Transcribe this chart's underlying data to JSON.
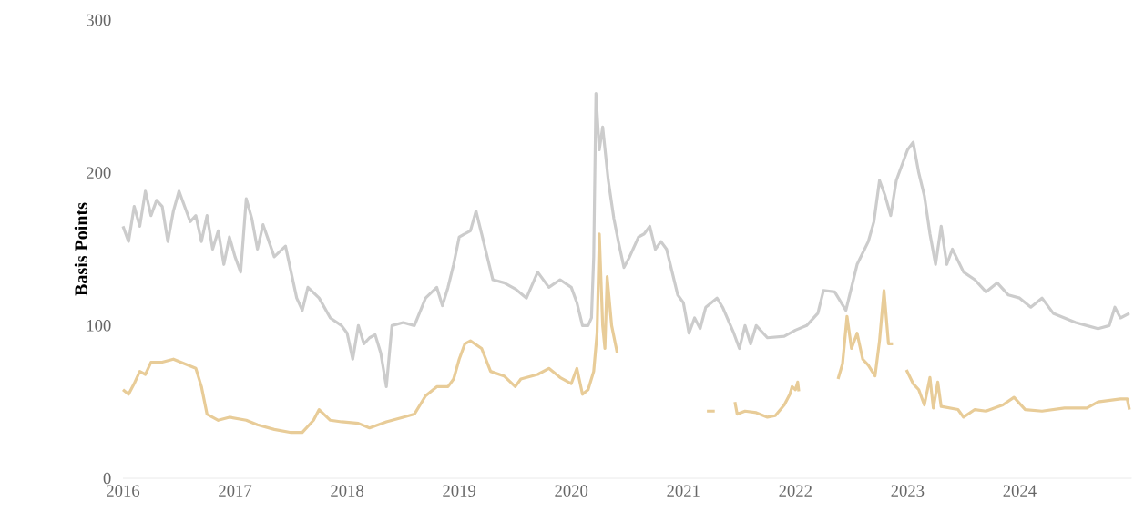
{
  "chart_data": {
    "type": "line",
    "ylabel": "Basis Points",
    "xlim": [
      2016,
      2025
    ],
    "ylim": [
      0,
      300
    ],
    "xticks": [
      2016,
      2017,
      2018,
      2019,
      2020,
      2021,
      2022,
      2023,
      2024
    ],
    "yticks": [
      0,
      100,
      200,
      300
    ],
    "series": [
      {
        "color": "#cccccc",
        "x": [
          2016.0,
          2016.05,
          2016.1,
          2016.15,
          2016.2,
          2016.25,
          2016.3,
          2016.35,
          2016.4,
          2016.45,
          2016.5,
          2016.55,
          2016.6,
          2016.65,
          2016.7,
          2016.75,
          2016.8,
          2016.85,
          2016.9,
          2016.95,
          2017.0,
          2017.05,
          2017.1,
          2017.15,
          2017.2,
          2017.25,
          2017.35,
          2017.45,
          2017.55,
          2017.6,
          2017.65,
          2017.75,
          2017.85,
          2017.95,
          2018.0,
          2018.05,
          2018.1,
          2018.15,
          2018.2,
          2018.25,
          2018.3,
          2018.35,
          2018.4,
          2018.5,
          2018.6,
          2018.7,
          2018.8,
          2018.85,
          2018.9,
          2018.95,
          2019.0,
          2019.1,
          2019.15,
          2019.2,
          2019.25,
          2019.3,
          2019.4,
          2019.5,
          2019.6,
          2019.7,
          2019.8,
          2019.9,
          2020.0,
          2020.05,
          2020.1,
          2020.15,
          2020.18,
          2020.2,
          2020.22,
          2020.25,
          2020.28,
          2020.33,
          2020.38,
          2020.42,
          2020.47,
          2020.52,
          2020.6,
          2020.65,
          2020.7,
          2020.75,
          2020.8,
          2020.85,
          2020.95,
          2021.0,
          2021.05,
          2021.1,
          2021.15,
          2021.2,
          2021.3,
          2021.35,
          2021.45,
          2021.5,
          2021.55,
          2021.6,
          2021.65,
          2021.75,
          2021.9,
          2022.0,
          2022.1,
          2022.2,
          2022.25,
          2022.35,
          2022.45,
          2022.5,
          2022.55,
          2022.65,
          2022.7,
          2022.75,
          2022.8,
          2022.85,
          2022.9,
          2022.95,
          2023.0,
          2023.05,
          2023.1,
          2023.15,
          2023.2,
          2023.25,
          2023.3,
          2023.35,
          2023.4,
          2023.5,
          2023.6,
          2023.7,
          2023.8,
          2023.9,
          2024.0,
          2024.1,
          2024.2,
          2024.3,
          2024.4,
          2024.5,
          2024.6,
          2024.7,
          2024.8,
          2024.85,
          2024.9,
          2024.98
        ],
        "values": [
          165,
          155,
          178,
          165,
          188,
          172,
          182,
          178,
          155,
          175,
          188,
          178,
          168,
          172,
          155,
          172,
          150,
          162,
          140,
          158,
          145,
          135,
          183,
          170,
          150,
          166,
          145,
          152,
          118,
          110,
          125,
          118,
          105,
          100,
          95,
          78,
          100,
          88,
          92,
          94,
          82,
          60,
          100,
          102,
          100,
          118,
          125,
          113,
          125,
          140,
          158,
          162,
          175,
          160,
          145,
          130,
          128,
          124,
          118,
          135,
          125,
          130,
          125,
          115,
          100,
          100,
          105,
          145,
          252,
          215,
          230,
          195,
          170,
          155,
          138,
          145,
          158,
          160,
          165,
          150,
          155,
          150,
          120,
          115,
          95,
          105,
          98,
          112,
          118,
          112,
          95,
          85,
          100,
          88,
          100,
          92,
          93,
          97,
          100,
          108,
          123,
          122,
          110,
          125,
          140,
          155,
          168,
          195,
          185,
          172,
          195,
          205,
          215,
          220,
          200,
          185,
          160,
          140,
          165,
          140,
          150,
          135,
          130,
          122,
          128,
          120,
          118,
          112,
          118,
          108,
          105,
          102,
          100,
          98,
          100,
          112,
          105,
          108
        ]
      },
      {
        "color": "#e8cc98",
        "x": [
          2016.0,
          2016.05,
          2016.1,
          2016.15,
          2016.2,
          2016.25,
          2016.35,
          2016.45,
          2016.55,
          2016.65,
          2016.7,
          2016.75,
          2016.85,
          2016.95,
          2017.1,
          2017.2,
          2017.35,
          2017.5,
          2017.6,
          2017.7,
          2017.75,
          2017.85,
          2017.95,
          2018.1,
          2018.2,
          2018.35,
          2018.5,
          2018.6,
          2018.7,
          2018.8,
          2018.9,
          2018.95,
          2019.0,
          2019.05,
          2019.1,
          2019.2,
          2019.28,
          2019.4,
          2019.5,
          2019.55,
          2019.7,
          2019.8,
          2019.9,
          2020.0,
          2020.05,
          2020.1,
          2020.15,
          2020.2,
          2020.23,
          2020.25,
          2020.28,
          2020.3,
          2020.32,
          2020.36,
          2020.41,
          2020.8,
          2021.21,
          2021.28,
          2021.35,
          2021.46,
          2021.48,
          2021.55,
          2021.65,
          2021.75,
          2021.82,
          2021.9,
          2021.95,
          2021.97,
          2022.0,
          2022.02,
          2022.03,
          2022.2,
          2022.38,
          2022.42,
          2022.46,
          2022.5,
          2022.55,
          2022.6,
          2022.65,
          2022.71,
          2022.75,
          2022.79,
          2022.83,
          2022.87,
          2022.93,
          2022.99,
          2023.05,
          2023.1,
          2023.15,
          2023.2,
          2023.23,
          2023.27,
          2023.3,
          2023.45,
          2023.5,
          2023.6,
          2023.7,
          2023.85,
          2023.95,
          2024.05,
          2024.2,
          2024.4,
          2024.6,
          2024.7,
          2024.9,
          2024.96,
          2024.98
        ],
        "values": [
          58,
          55,
          62,
          70,
          68,
          76,
          76,
          78,
          75,
          72,
          60,
          42,
          38,
          40,
          38,
          35,
          32,
          30,
          30,
          38,
          45,
          38,
          37,
          36,
          33,
          37,
          40,
          42,
          54,
          60,
          60,
          65,
          78,
          88,
          90,
          85,
          70,
          67,
          60,
          65,
          68,
          72,
          66,
          62,
          72,
          55,
          58,
          70,
          95,
          160,
          100,
          85,
          132,
          100,
          82,
          null,
          44,
          44,
          null,
          50,
          42,
          44,
          43,
          40,
          41,
          48,
          55,
          60,
          58,
          63,
          57,
          null,
          65,
          75,
          106,
          85,
          95,
          78,
          74,
          67,
          90,
          123,
          88,
          88,
          null,
          71,
          62,
          58,
          48,
          66,
          46,
          63,
          47,
          45,
          40,
          45,
          44,
          48,
          53,
          45,
          44,
          46,
          46,
          50,
          52,
          52,
          45
        ]
      }
    ]
  }
}
